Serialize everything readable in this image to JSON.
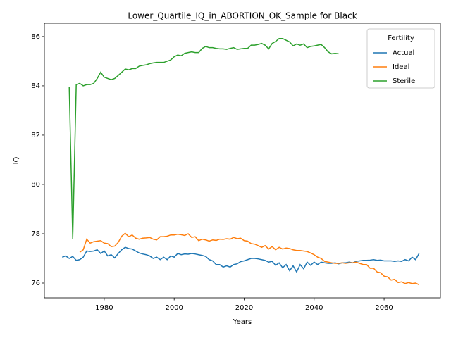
{
  "chart_data": {
    "type": "line",
    "title": "Lower_Quartile_IQ_in_ABORTION_OK_Sample for Black",
    "xlabel": "Years",
    "ylabel": "IQ",
    "legend_title": "Fertility",
    "legend_loc": "upper right",
    "xlim": [
      1962.9,
      2076.1
    ],
    "ylim": [
      75.4,
      86.54
    ],
    "xticks": [
      1980,
      2000,
      2020,
      2040,
      2060
    ],
    "yticks": [
      76,
      78,
      80,
      82,
      84,
      86
    ],
    "x": [
      1968,
      1969,
      1970,
      1971,
      1972,
      1973,
      1974,
      1975,
      1976,
      1977,
      1978,
      1979,
      1980,
      1981,
      1982,
      1983,
      1984,
      1985,
      1986,
      1987,
      1988,
      1989,
      1990,
      1991,
      1992,
      1993,
      1994,
      1995,
      1996,
      1997,
      1998,
      1999,
      2000,
      2001,
      2002,
      2003,
      2004,
      2005,
      2006,
      2007,
      2008,
      2009,
      2010,
      2011,
      2012,
      2013,
      2014,
      2015,
      2016,
      2017,
      2018,
      2019,
      2020,
      2021,
      2022,
      2023,
      2024,
      2025,
      2026,
      2027,
      2028,
      2029,
      2030,
      2031,
      2032,
      2033,
      2034,
      2035,
      2036,
      2037,
      2038,
      2039,
      2040,
      2041,
      2042,
      2043,
      2044,
      2045,
      2046,
      2047,
      2048,
      2049,
      2050,
      2051,
      2052,
      2053,
      2054,
      2055,
      2056,
      2057,
      2058,
      2059,
      2060,
      2061,
      2062,
      2063,
      2064,
      2065,
      2066,
      2067,
      2068,
      2069,
      2070
    ],
    "series": [
      {
        "name": "Actual",
        "color": "#1f77b4",
        "values": [
          77.05,
          77.1,
          77.0,
          77.08,
          76.92,
          76.95,
          77.05,
          77.3,
          77.28,
          77.3,
          77.35,
          77.2,
          77.3,
          77.1,
          77.15,
          77.02,
          77.2,
          77.35,
          77.45,
          77.4,
          77.38,
          77.3,
          77.22,
          77.18,
          77.15,
          77.1,
          77.0,
          77.05,
          76.95,
          77.05,
          76.95,
          77.1,
          77.05,
          77.2,
          77.15,
          77.18,
          77.17,
          77.2,
          77.18,
          77.15,
          77.12,
          77.08,
          76.95,
          76.9,
          76.75,
          76.75,
          76.65,
          76.7,
          76.65,
          76.75,
          76.78,
          76.87,
          76.9,
          76.95,
          77.0,
          77.0,
          76.98,
          76.95,
          76.92,
          76.85,
          76.88,
          76.72,
          76.82,
          76.62,
          76.75,
          76.5,
          76.7,
          76.45,
          76.75,
          76.58,
          76.85,
          76.72,
          76.85,
          76.75,
          76.85,
          76.82,
          76.8,
          76.8,
          76.82,
          76.78,
          76.82,
          76.82,
          76.85,
          76.82,
          76.88,
          76.9,
          76.92,
          76.92,
          76.93,
          76.95,
          76.92,
          76.93,
          76.9,
          76.9,
          76.9,
          76.88,
          76.9,
          76.88,
          76.95,
          76.9,
          77.05,
          76.95,
          77.2
        ]
      },
      {
        "name": "Ideal",
        "color": "#ff7f0e",
        "values": [
          null,
          null,
          null,
          null,
          null,
          77.25,
          77.35,
          77.78,
          77.62,
          77.68,
          77.7,
          77.72,
          77.62,
          77.6,
          77.48,
          77.5,
          77.65,
          77.9,
          78.02,
          77.88,
          77.95,
          77.82,
          77.78,
          77.82,
          77.83,
          77.85,
          77.78,
          77.75,
          77.88,
          77.88,
          77.9,
          77.95,
          77.95,
          77.98,
          77.96,
          77.93,
          78.0,
          77.85,
          77.88,
          77.72,
          77.78,
          77.75,
          77.7,
          77.75,
          77.73,
          77.78,
          77.77,
          77.8,
          77.78,
          77.85,
          77.8,
          77.82,
          77.72,
          77.7,
          77.6,
          77.58,
          77.52,
          77.45,
          77.52,
          77.38,
          77.48,
          77.35,
          77.45,
          77.38,
          77.42,
          77.4,
          77.35,
          77.32,
          77.32,
          77.3,
          77.28,
          77.22,
          77.15,
          77.05,
          77.0,
          76.88,
          76.85,
          76.82,
          76.8,
          76.8,
          76.82,
          76.8,
          76.82,
          76.82,
          76.85,
          76.8,
          76.75,
          76.75,
          76.6,
          76.6,
          76.45,
          76.42,
          76.28,
          76.25,
          76.12,
          76.15,
          76.02,
          76.05,
          75.98,
          76.02,
          75.98,
          76.0,
          75.93
        ]
      },
      {
        "name": "Sterile",
        "color": "#2ca02c",
        "values": [
          null,
          null,
          83.95,
          77.8,
          84.05,
          84.1,
          84.0,
          84.05,
          84.05,
          84.1,
          84.3,
          84.55,
          84.35,
          84.3,
          84.25,
          84.3,
          84.42,
          84.55,
          84.68,
          84.65,
          84.7,
          84.7,
          84.8,
          84.83,
          84.85,
          84.9,
          84.93,
          84.95,
          84.95,
          84.95,
          85.0,
          85.05,
          85.18,
          85.25,
          85.22,
          85.32,
          85.35,
          85.38,
          85.35,
          85.35,
          85.52,
          85.6,
          85.55,
          85.55,
          85.52,
          85.5,
          85.5,
          85.48,
          85.52,
          85.55,
          85.48,
          85.5,
          85.52,
          85.52,
          85.65,
          85.65,
          85.68,
          85.72,
          85.65,
          85.5,
          85.72,
          85.8,
          85.92,
          85.92,
          85.85,
          85.78,
          85.62,
          85.7,
          85.65,
          85.7,
          85.55,
          85.6,
          85.62,
          85.65,
          85.68,
          85.55,
          85.38,
          85.3,
          85.32,
          85.3,
          null,
          null,
          null,
          null,
          null,
          null,
          null,
          null,
          null,
          null,
          null,
          null,
          null,
          null,
          null,
          null,
          null,
          null,
          null,
          null,
          null,
          null,
          null
        ]
      }
    ]
  }
}
